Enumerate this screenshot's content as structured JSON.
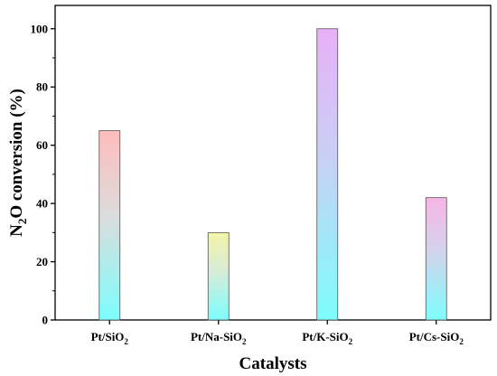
{
  "chart_data": {
    "type": "bar",
    "categories": [
      {
        "base": "Pt/SiO",
        "sub": "2",
        "suffix": ""
      },
      {
        "base": "Pt/Na-SiO",
        "sub": "2",
        "suffix": ""
      },
      {
        "base": "Pt/K-SiO",
        "sub": "2",
        "suffix": ""
      },
      {
        "base": "Pt/Cs-SiO",
        "sub": "2",
        "suffix": ""
      }
    ],
    "values": [
      65,
      30,
      100,
      42
    ],
    "bar_gradients": [
      {
        "top": "#ffbcbc",
        "mid": "#dcdcdc",
        "bottom": "#7dfdfd"
      },
      {
        "top": "#f4f4a8",
        "mid": "#d6ecd8",
        "bottom": "#7dfdfd"
      },
      {
        "top": "#e8b0f8",
        "mid": "#c8d0f4",
        "bottom": "#7dfdfd"
      },
      {
        "top": "#f8b4e6",
        "mid": "#d2d4ec",
        "bottom": "#7dfdfd"
      }
    ],
    "xlabel": "Catalysts",
    "ylabel": {
      "p1": "N",
      "sub": "2",
      "p2": "O conversion (%)"
    },
    "ylim": [
      0,
      108
    ],
    "yticks": [
      0,
      20,
      40,
      60,
      80,
      100
    ],
    "grid": false,
    "legend": "none"
  }
}
